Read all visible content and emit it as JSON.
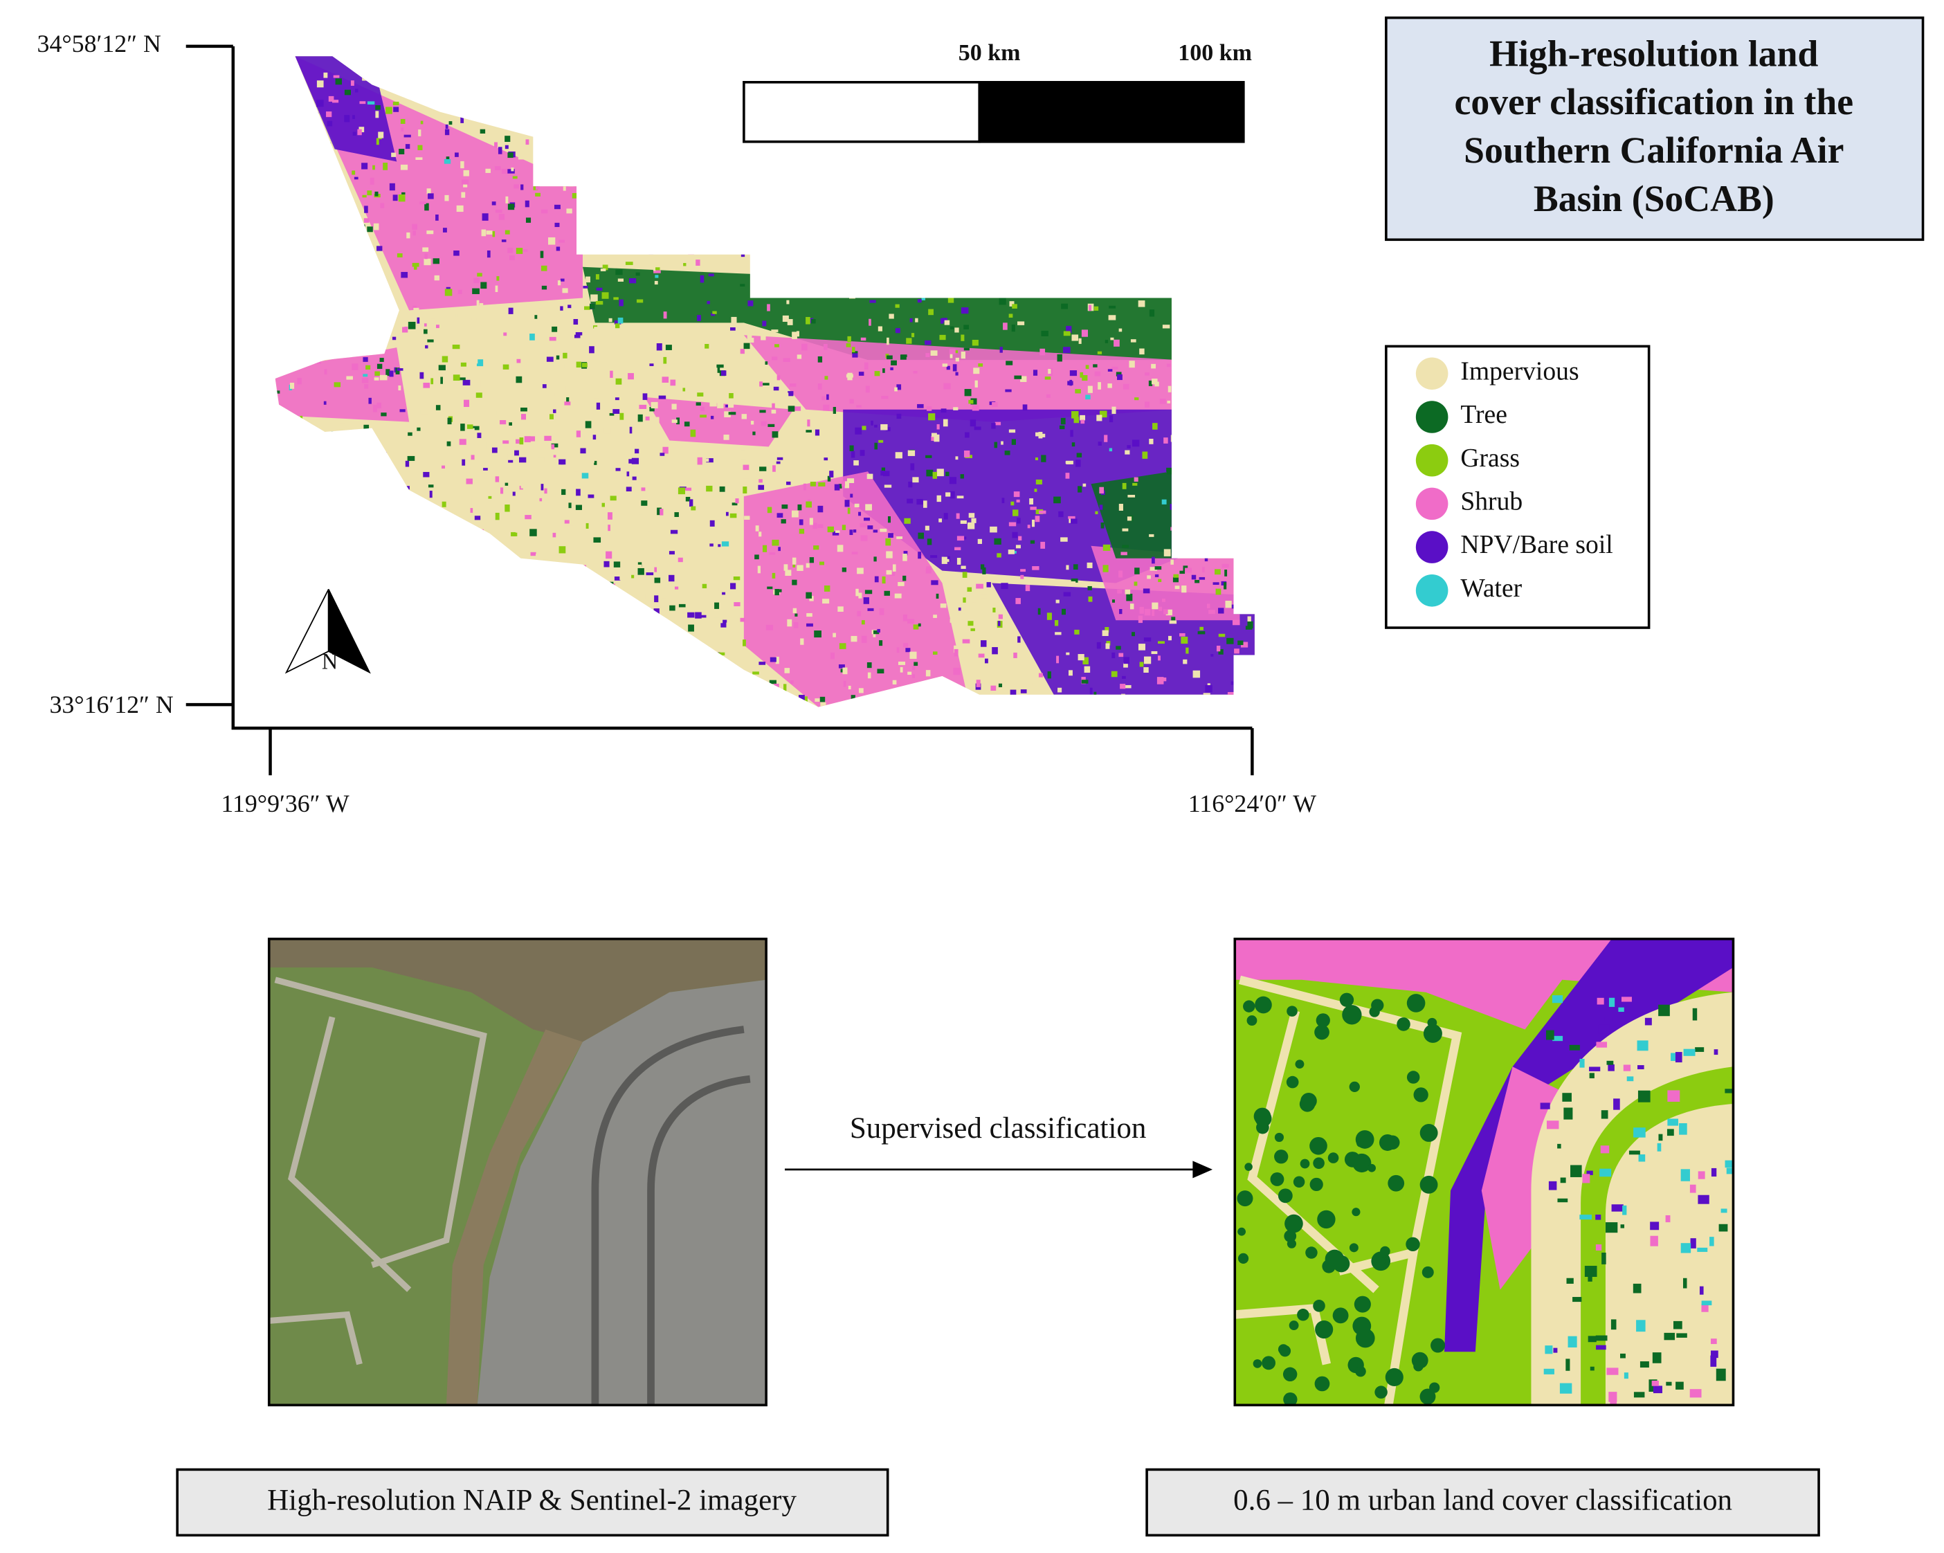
{
  "map": {
    "lat_labels": [
      "34°58′12″ N",
      "33°16′12″ N"
    ],
    "lon_labels": [
      "119°9′36″ W",
      "116°24′0″ W"
    ],
    "scale_labels": [
      "50 km",
      "100 km"
    ],
    "north_label": "N"
  },
  "title": "High-resolution land cover classification in the Southern California Air Basin (SoCAB)",
  "title_lines": [
    "High-resolution land",
    "cover classification in the",
    "Southern California Air",
    "Basin (SoCAB)"
  ],
  "legend": {
    "items": [
      {
        "label": "Impervious",
        "color": "#efe3b0"
      },
      {
        "label": "Tree",
        "color": "#0c6a24"
      },
      {
        "label": "Grass",
        "color": "#8ccc10"
      },
      {
        "label": "Shrub",
        "color": "#f06cc8"
      },
      {
        "label": "NPV/Bare soil",
        "color": "#5a0fc6"
      },
      {
        "label": "Water",
        "color": "#33ccd0"
      }
    ]
  },
  "workflow": {
    "arrow_label": "Supervised classification",
    "left_caption": "High-resolution NAIP & Sentinel-2 imagery",
    "right_caption": "0.6 – 10 m urban land cover classification"
  }
}
